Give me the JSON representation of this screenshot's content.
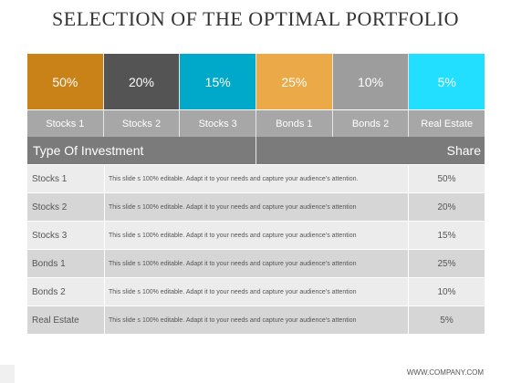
{
  "title": "SELECTION OF THE OPTIMAL PORTFOLIO",
  "tiles": [
    {
      "value": "50%",
      "color": "#c98218"
    },
    {
      "value": "20%",
      "color": "#545454"
    },
    {
      "value": "15%",
      "color": "#00a9c9"
    },
    {
      "value": "25%",
      "color": "#eba948"
    },
    {
      "value": "10%",
      "color": "#9d9d9d"
    },
    {
      "value": "5%",
      "color": "#22dfff"
    }
  ],
  "labels": [
    "Stocks 1",
    "Stocks 2",
    "Stocks 3",
    "Bonds 1",
    "Bonds 2",
    "Real Estate"
  ],
  "table": {
    "header_left": "Type Of Investment",
    "header_right": "Share",
    "rows": [
      {
        "type": "Stocks 1",
        "desc": "This slide s 100% editable. Adapt it to your needs and capture your audience’s attention.",
        "share": "50%"
      },
      {
        "type": "Stocks 2",
        "desc": "This slide s 100% editable. Adapt it to your needs and capture your audience’s attention",
        "share": "20%"
      },
      {
        "type": "Stocks 3",
        "desc": "This slide s 100% editable. Adapt it to your needs and capture your audience’s attention",
        "share": "15%"
      },
      {
        "type": "Bonds 1",
        "desc": "This slide s 100% editable. Adapt it to your needs and capture your audience’s attention",
        "share": "25%"
      },
      {
        "type": "Bonds 2",
        "desc": "This slide s 100% editable. Adapt it to your needs and capture your audience’s attention",
        "share": "10%"
      },
      {
        "type": "Real Estate",
        "desc": "This slide s 100% editable. Adapt it to your needs and capture your audience’s attention",
        "share": "5%"
      }
    ]
  },
  "footer": "WWW.COMPANY.COM"
}
